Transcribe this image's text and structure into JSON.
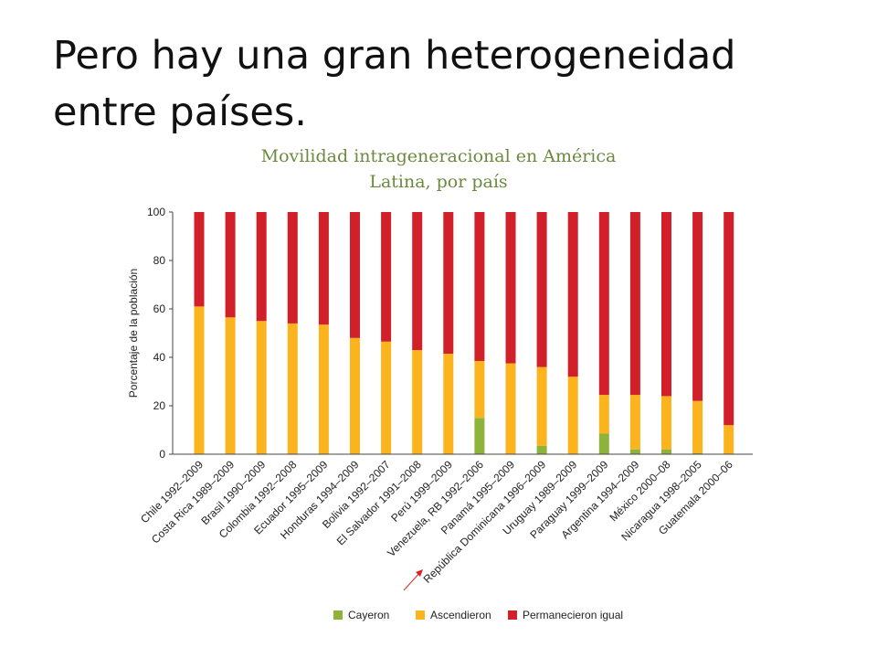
{
  "slide": {
    "title_line1": "Pero hay una gran heterogeneidad",
    "title_line2": "entre países."
  },
  "chart_data": {
    "type": "bar",
    "stacked": true,
    "title_line1": "Movilidad intrageneracional en América",
    "title_line2": "Latina, por país",
    "ylabel": "Porcentaje de la población",
    "ylim": [
      0,
      100
    ],
    "yticks": [
      "0",
      "20",
      "40",
      "60",
      "80",
      "100"
    ],
    "grid": false,
    "legend_position": "bottom",
    "categories": [
      "Chile 1992–2009",
      "Costa Rica 1989–2009",
      "Brasil 1990–2009",
      "Colombia 1992–2008",
      "Ecuador 1995–2009",
      "Honduras 1994–2009",
      "Bolivia 1992–2007",
      "El Salvador 1991–2008",
      "Perú 1999–2009",
      "Venezuela, RB 1992–2006",
      "Panamá 1995–2009",
      "República Dominicana 1996–2009",
      "Uruguay 1989–2009",
      "Paraguay 1999–2009",
      "Argentina 1994–2009",
      "México 2000–08",
      "Nicaragua 1998–2005",
      "Guatemala 2000–06"
    ],
    "series": [
      {
        "name": "Cayeron",
        "color": "#8db33a",
        "values": [
          0,
          0,
          0,
          0,
          0,
          0,
          0,
          0,
          0,
          15,
          0,
          3.5,
          0,
          8.5,
          2,
          2,
          0.5,
          0
        ]
      },
      {
        "name": "Ascendieron",
        "color": "#fbb31e",
        "values": [
          61,
          56.5,
          55,
          54,
          53.5,
          48,
          46.5,
          43,
          41.5,
          23.5,
          37.5,
          32.5,
          32,
          16,
          22.5,
          22,
          21.5,
          12
        ]
      },
      {
        "name": "Permanecieron igual",
        "color": "#d1202a",
        "values": [
          39,
          43.5,
          45,
          46,
          46.5,
          52,
          53.5,
          57,
          58.5,
          61.5,
          62.5,
          64,
          68,
          75.5,
          75.5,
          76,
          78,
          88
        ]
      }
    ],
    "annotation_arrow": {
      "color": "#e02020",
      "points_to": "República Dominicana 1996–2009"
    }
  }
}
